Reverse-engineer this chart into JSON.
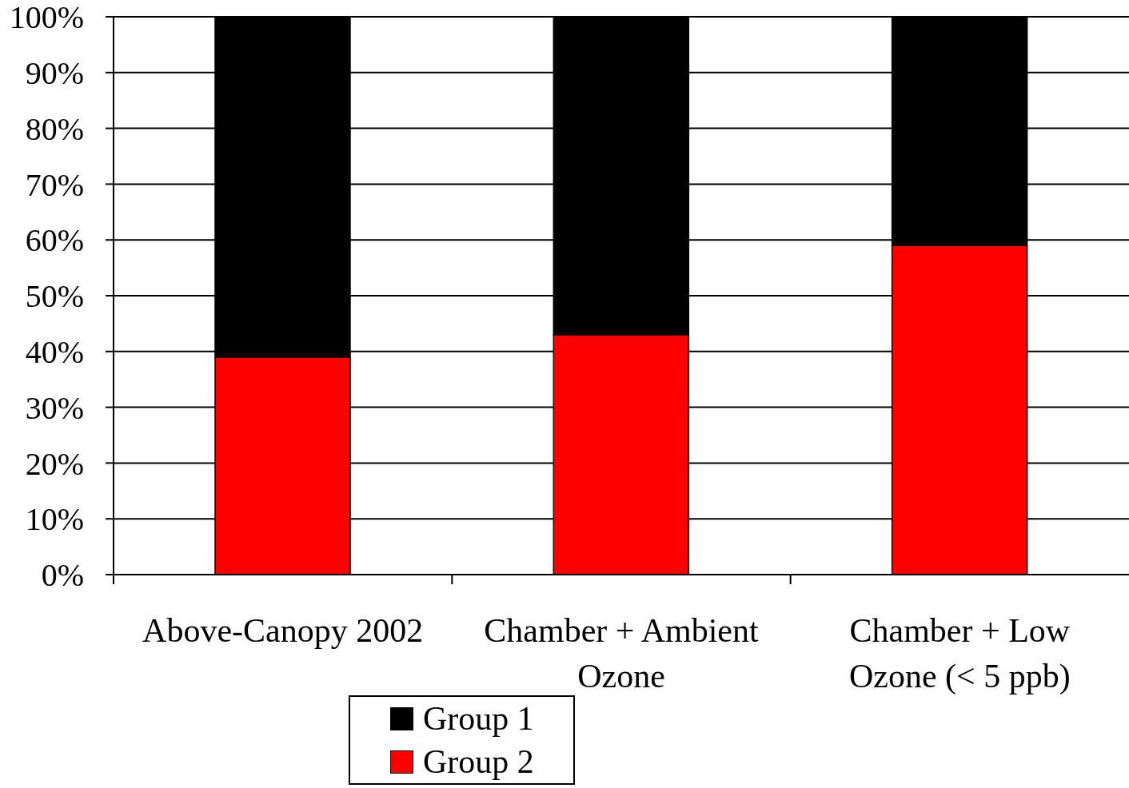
{
  "chart_data": {
    "type": "bar",
    "categories": [
      "Above-Canopy 2002",
      "Chamber + Ambient Ozone",
      "Chamber + Low Ozone (< 5 ppb)"
    ],
    "series": [
      {
        "name": "Group 2",
        "color": "#ff0000",
        "values": [
          39,
          43,
          59
        ]
      },
      {
        "name": "Group 1",
        "color": "#000000",
        "values": [
          61,
          57,
          41
        ]
      }
    ],
    "stacked": true,
    "ylim": [
      0,
      100
    ],
    "yticks": [
      {
        "value": 0,
        "label": "0%"
      },
      {
        "value": 10,
        "label": "10%"
      },
      {
        "value": 20,
        "label": "20%"
      },
      {
        "value": 30,
        "label": "30%"
      },
      {
        "value": 40,
        "label": "40%"
      },
      {
        "value": 50,
        "label": "50%"
      },
      {
        "value": 60,
        "label": "60%"
      },
      {
        "value": 70,
        "label": "70%"
      },
      {
        "value": 80,
        "label": "80%"
      },
      {
        "value": 90,
        "label": "90%"
      },
      {
        "value": 100,
        "label": "100%"
      }
    ],
    "grid": "y",
    "legend": "bottom"
  }
}
